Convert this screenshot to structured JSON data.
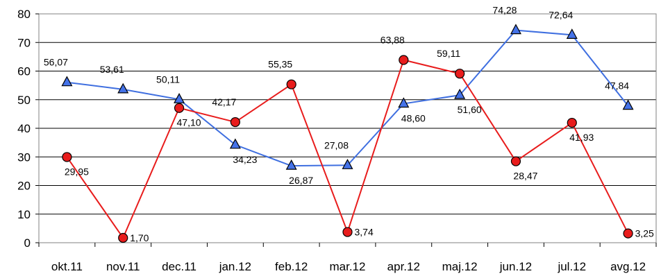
{
  "chart_data": {
    "type": "line",
    "categories": [
      "okt.11",
      "nov.11",
      "dec.11",
      "jan.12",
      "feb.12",
      "mar.12",
      "apr.12",
      "maj.12",
      "jun.12",
      "jul.12",
      "avg.12"
    ],
    "ylim": [
      0,
      80
    ],
    "yticks": [
      0,
      10,
      20,
      30,
      40,
      50,
      60,
      70,
      80
    ],
    "grid": "horizontal",
    "legend": "none",
    "series": [
      {
        "marker": "triangle",
        "line_color": "#3f6fe0",
        "marker_fill": "#4472e8",
        "values": [
          56.07,
          53.61,
          50.11,
          34.23,
          26.87,
          27.08,
          48.6,
          51.6,
          74.28,
          72.64,
          47.84
        ],
        "labels": [
          "56,07",
          "53,61",
          "50,11",
          "34,23",
          "26,87",
          "27,08",
          "48,60",
          "51,60",
          "74,28",
          "72,64",
          "47,84"
        ]
      },
      {
        "marker": "circle",
        "line_color": "#e81c1c",
        "marker_fill": "#e81c1c",
        "values": [
          29.95,
          1.7,
          47.1,
          42.17,
          55.35,
          3.74,
          63.88,
          59.11,
          28.47,
          41.93,
          3.25
        ],
        "labels": [
          "29,95",
          "1,70",
          "47,10",
          "42,17",
          "55,35",
          "3,74",
          "63,88",
          "59,11",
          "28,47",
          "41,93",
          "3,25"
        ]
      }
    ]
  }
}
